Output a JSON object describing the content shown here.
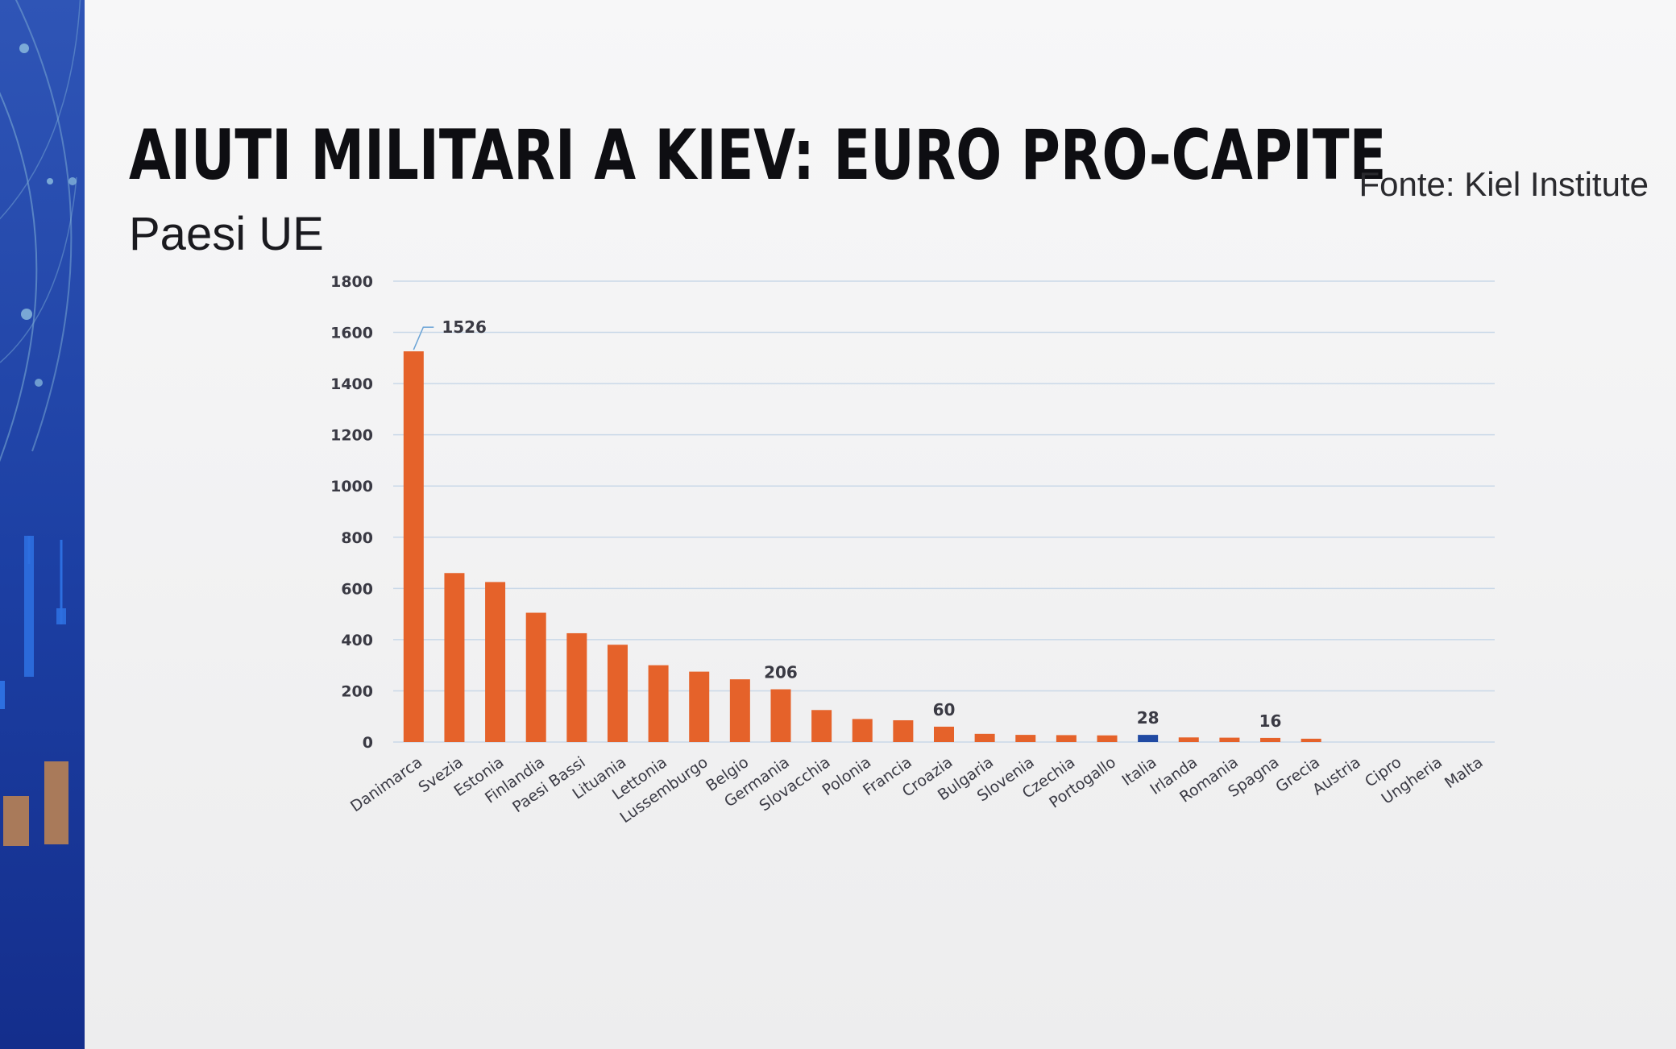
{
  "header": {
    "title": "AIUTI MILITARI A KIEV: EURO PRO-CAPITE",
    "subtitle": "Paesi UE",
    "source": "Fonte: Kiel Institute"
  },
  "colors": {
    "bar": "#e5622a",
    "highlight": "#214aa3",
    "grid": "#c9d8e8",
    "text": "#3a3a44"
  },
  "chart_data": {
    "type": "bar",
    "title": "AIUTI MILITARI A KIEV: EURO PRO-CAPITE",
    "subtitle": "Paesi UE",
    "xlabel": "",
    "ylabel": "",
    "ylim": [
      0,
      1800
    ],
    "yticks": [
      0,
      200,
      400,
      600,
      800,
      1000,
      1200,
      1400,
      1600,
      1800
    ],
    "grid": true,
    "legend": "none",
    "categories": [
      "Danimarca",
      "Svezia",
      "Estonia",
      "Finlandia",
      "Paesi Bassi",
      "Lituania",
      "Lettonia",
      "Lussemburgo",
      "Belgio",
      "Germania",
      "Slovacchia",
      "Polonia",
      "Francia",
      "Croazia",
      "Bulgaria",
      "Slovenia",
      "Czechia",
      "Portogallo",
      "Italia",
      "Irlanda",
      "Romania",
      "Spagna",
      "Grecia",
      "Austria",
      "Cipro",
      "Ungheria",
      "Malta"
    ],
    "values": [
      1526,
      660,
      625,
      505,
      425,
      380,
      300,
      275,
      245,
      206,
      125,
      90,
      85,
      60,
      32,
      28,
      27,
      26,
      28,
      18,
      17,
      16,
      13,
      0,
      0,
      0,
      0
    ],
    "highlight_category": "Italia",
    "data_labels": [
      {
        "category": "Danimarca",
        "text": "1526"
      },
      {
        "category": "Germania",
        "text": "206"
      },
      {
        "category": "Croazia",
        "text": "60"
      },
      {
        "category": "Italia",
        "text": "28"
      },
      {
        "category": "Spagna",
        "text": "16"
      }
    ]
  }
}
